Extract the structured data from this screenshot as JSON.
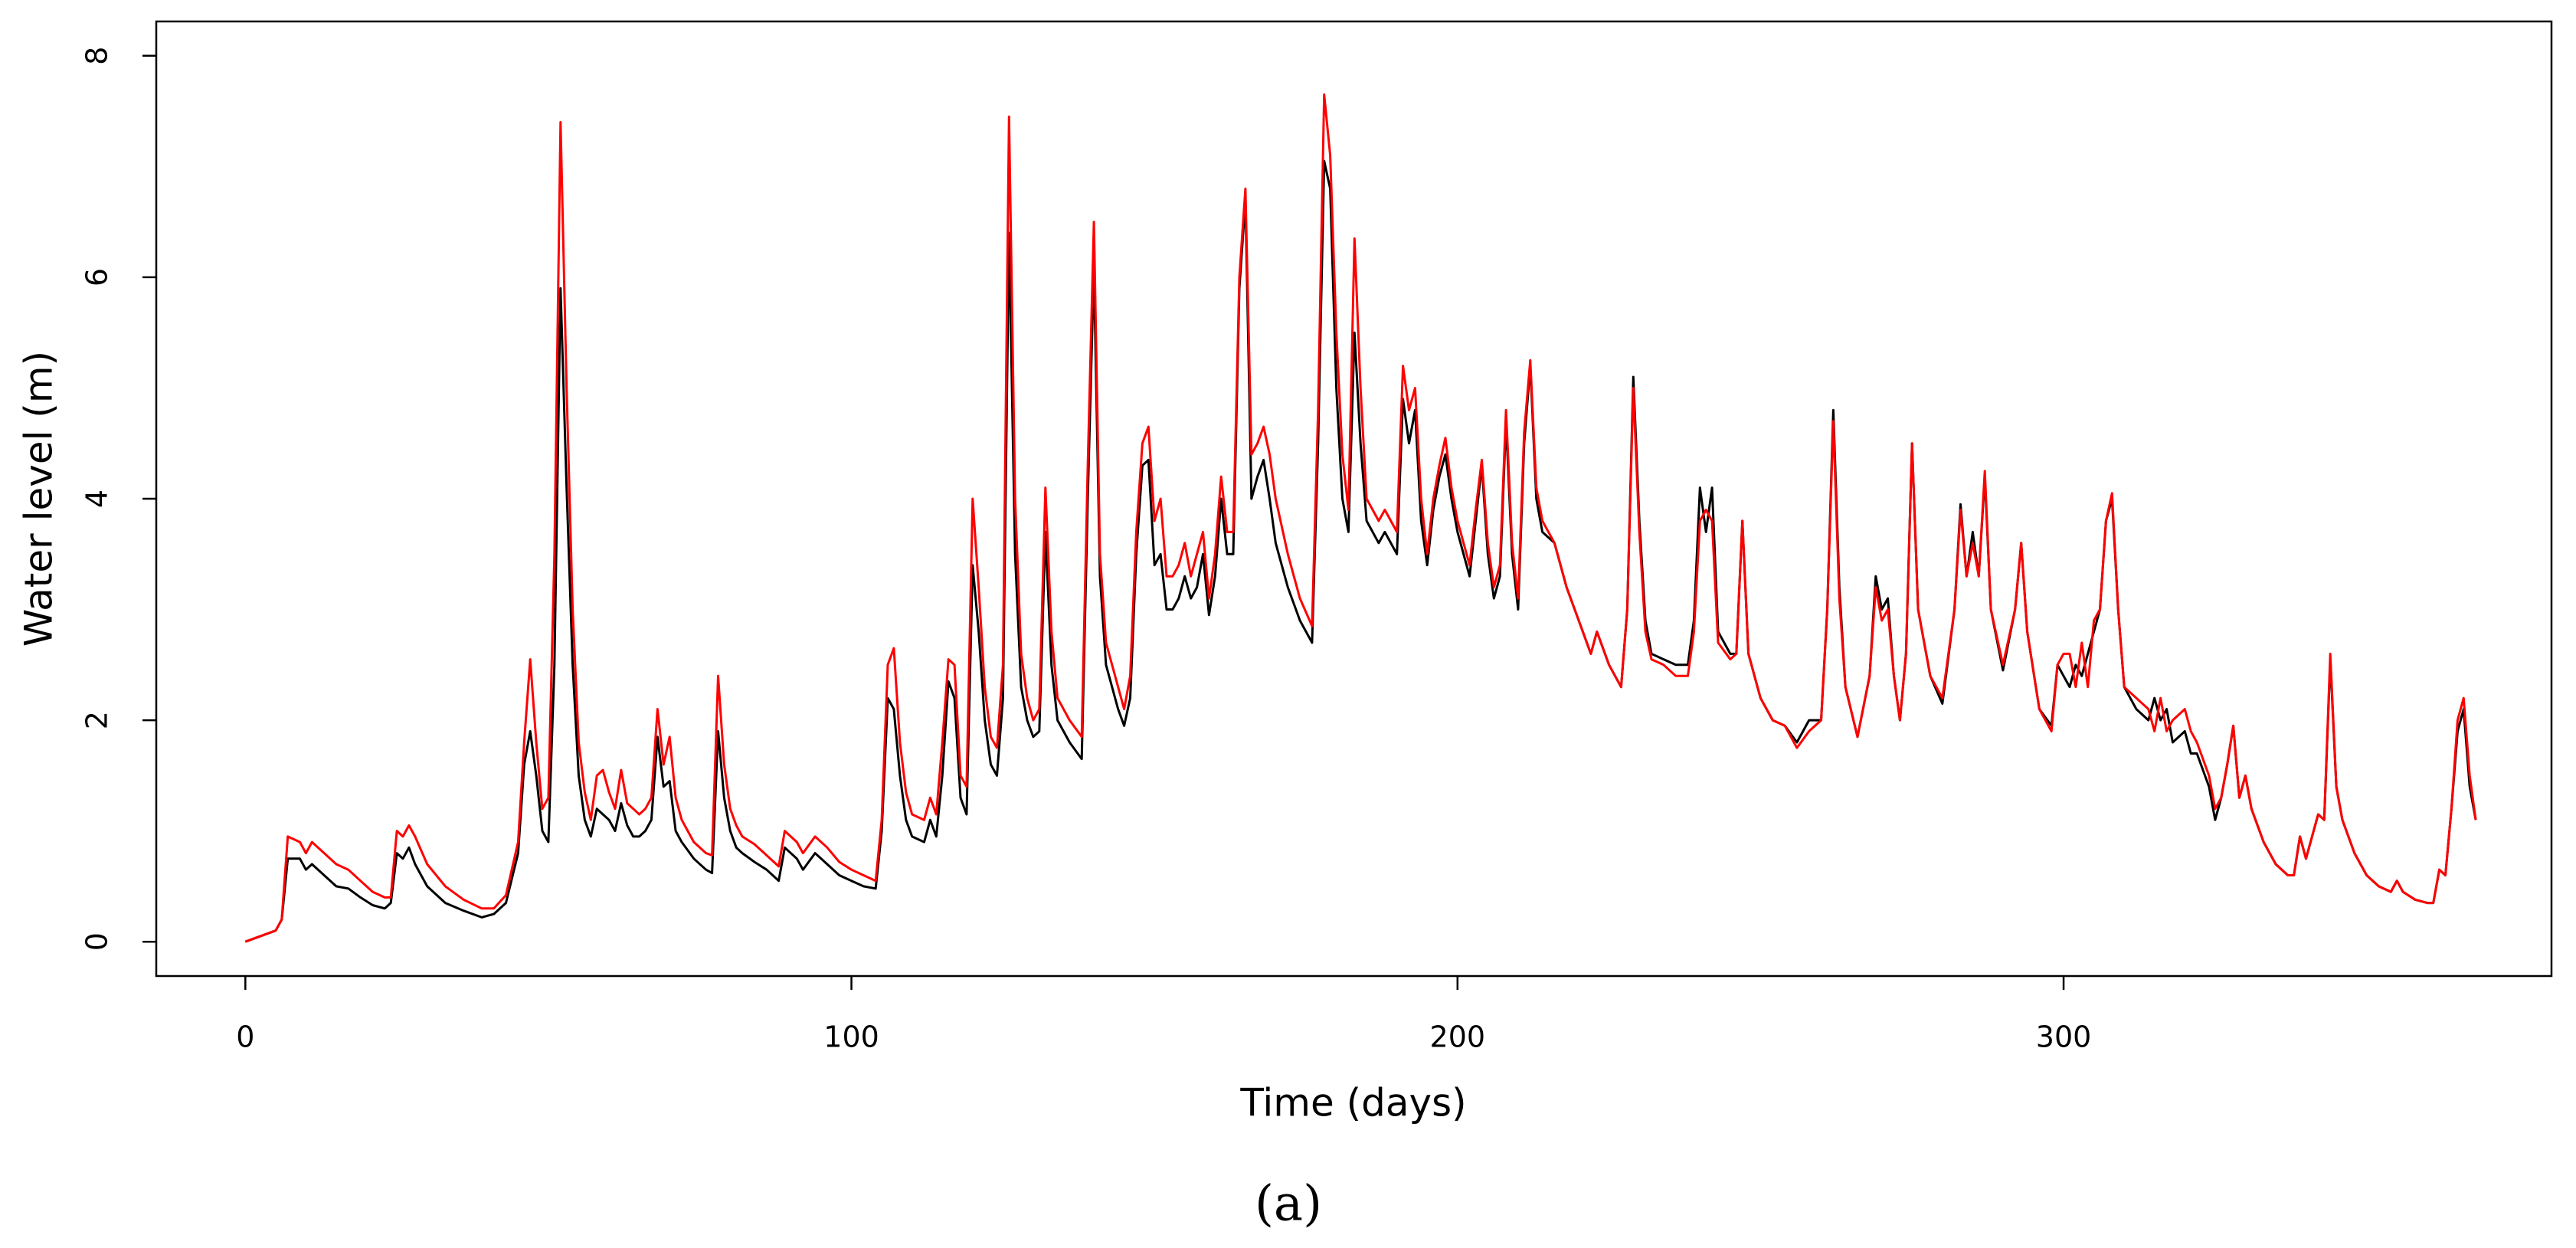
{
  "chart_data": {
    "type": "line",
    "xlabel": "Time (days)",
    "ylabel": "Water level (m)",
    "caption": "(a)",
    "xlim": [
      -14.7,
      380.5
    ],
    "ylim": [
      -0.31,
      8.31
    ],
    "xticks": [
      0,
      100,
      200,
      300
    ],
    "yticks": [
      0,
      2,
      4,
      6,
      8
    ],
    "x": [
      0,
      5,
      6,
      7,
      9,
      10,
      11,
      13,
      15,
      17,
      19,
      21,
      23,
      24,
      25,
      26,
      27,
      28,
      30,
      33,
      36,
      39,
      41,
      43,
      45,
      46,
      47,
      48,
      49,
      50,
      51,
      52,
      53,
      54,
      55,
      56,
      57,
      58,
      59,
      60,
      61,
      62,
      63,
      64,
      65,
      66,
      67,
      68,
      69,
      70,
      71,
      72,
      74,
      76,
      77,
      78,
      79,
      80,
      81,
      82,
      84,
      86,
      88,
      89,
      91,
      92,
      94,
      96,
      98,
      100,
      102,
      104,
      105,
      106,
      107,
      108,
      109,
      110,
      112,
      113,
      114,
      115,
      116,
      117,
      118,
      119,
      120,
      121,
      122,
      123,
      124,
      125,
      126,
      127,
      128,
      129,
      130,
      131,
      132,
      133,
      134,
      136,
      138,
      139,
      140,
      141,
      142,
      144,
      145,
      146,
      147,
      148,
      149,
      150,
      151,
      152,
      153,
      154,
      155,
      156,
      157,
      158,
      159,
      160,
      161,
      162,
      163,
      164,
      165,
      166,
      167,
      168,
      169,
      170,
      172,
      174,
      176,
      177,
      178,
      179,
      180,
      181,
      182,
      183,
      184,
      185,
      187,
      188,
      190,
      191,
      192,
      193,
      194,
      195,
      196,
      197,
      198,
      199,
      200,
      202,
      203,
      204,
      205,
      206,
      207,
      208,
      209,
      210,
      211,
      212,
      213,
      214,
      216,
      218,
      220,
      222,
      223,
      225,
      227,
      228,
      229,
      230,
      231,
      232,
      234,
      236,
      238,
      239,
      240,
      241,
      242,
      243,
      245,
      246,
      247,
      248,
      250,
      252,
      254,
      256,
      258,
      260,
      261,
      262,
      263,
      264,
      266,
      268,
      269,
      270,
      271,
      272,
      273,
      274,
      275,
      276,
      278,
      280,
      282,
      283,
      284,
      285,
      286,
      287,
      288,
      290,
      292,
      293,
      294,
      296,
      298,
      299,
      300,
      301,
      302,
      303,
      304,
      305,
      306,
      307,
      308,
      309,
      310,
      312,
      314,
      315,
      316,
      317,
      318,
      320,
      321,
      322,
      324,
      325,
      326,
      327,
      328,
      329,
      330,
      331,
      333,
      335,
      337,
      338,
      339,
      340,
      342,
      343,
      344,
      345,
      346,
      348,
      350,
      352,
      354,
      355,
      356,
      358,
      360,
      361,
      362,
      363,
      364,
      365,
      366,
      367,
      368
    ],
    "series": [
      {
        "color": "#000000",
        "values": [
          0,
          0.1,
          0.2,
          0.75,
          0.75,
          0.65,
          0.7,
          0.6,
          0.5,
          0.48,
          0.4,
          0.33,
          0.3,
          0.35,
          0.8,
          0.75,
          0.85,
          0.7,
          0.5,
          0.35,
          0.28,
          0.22,
          0.25,
          0.35,
          0.8,
          1.6,
          1.9,
          1.5,
          1.0,
          0.9,
          2.5,
          5.9,
          4.1,
          2.5,
          1.5,
          1.1,
          0.95,
          1.2,
          1.15,
          1.1,
          1.0,
          1.25,
          1.05,
          0.95,
          0.95,
          1.0,
          1.1,
          1.85,
          1.4,
          1.45,
          1.0,
          0.9,
          0.75,
          0.65,
          0.62,
          1.9,
          1.3,
          1.0,
          0.85,
          0.8,
          0.72,
          0.65,
          0.55,
          0.85,
          0.75,
          0.65,
          0.8,
          0.7,
          0.6,
          0.55,
          0.5,
          0.48,
          1.0,
          2.2,
          2.1,
          1.5,
          1.1,
          0.95,
          0.9,
          1.1,
          0.95,
          1.5,
          2.35,
          2.2,
          1.3,
          1.15,
          3.4,
          2.8,
          2.0,
          1.6,
          1.5,
          2.2,
          6.4,
          3.5,
          2.3,
          2.0,
          1.85,
          1.9,
          3.7,
          2.5,
          2.0,
          1.8,
          1.65,
          4.0,
          6.1,
          3.3,
          2.5,
          2.1,
          1.95,
          2.2,
          3.5,
          4.3,
          4.35,
          3.4,
          3.5,
          3.0,
          3.0,
          3.1,
          3.3,
          3.1,
          3.2,
          3.5,
          2.95,
          3.3,
          4.0,
          3.5,
          3.5,
          5.9,
          6.7,
          4.0,
          4.2,
          4.35,
          4.0,
          3.6,
          3.2,
          2.9,
          2.7,
          4.5,
          7.05,
          6.8,
          5.0,
          4.0,
          3.7,
          5.5,
          4.5,
          3.8,
          3.6,
          3.7,
          3.5,
          4.9,
          4.5,
          4.8,
          3.8,
          3.4,
          3.9,
          4.2,
          4.4,
          4.0,
          3.7,
          3.3,
          3.8,
          4.3,
          3.5,
          3.1,
          3.3,
          4.7,
          3.5,
          3.0,
          4.5,
          5.2,
          4.0,
          3.7,
          3.6,
          3.2,
          2.9,
          2.6,
          2.8,
          2.5,
          2.3,
          3.0,
          5.1,
          3.8,
          2.9,
          2.6,
          2.55,
          2.5,
          2.5,
          2.9,
          4.1,
          3.7,
          4.1,
          2.8,
          2.6,
          2.6,
          3.8,
          2.6,
          2.2,
          2.0,
          1.95,
          1.8,
          2.0,
          2.0,
          3.0,
          4.8,
          3.2,
          2.3,
          1.85,
          2.4,
          3.3,
          3.0,
          3.1,
          2.4,
          2.0,
          2.6,
          4.5,
          3.0,
          2.4,
          2.15,
          3.0,
          3.95,
          3.3,
          3.7,
          3.3,
          4.2,
          3.0,
          2.45,
          3.0,
          3.6,
          2.8,
          2.1,
          1.95,
          2.5,
          2.4,
          2.3,
          2.5,
          2.4,
          2.6,
          2.8,
          3.0,
          3.8,
          4.0,
          3.0,
          2.3,
          2.1,
          2.0,
          2.2,
          2.0,
          2.1,
          1.8,
          1.9,
          1.7,
          1.7,
          1.4,
          1.1,
          1.3,
          1.6,
          1.95,
          1.3,
          1.5,
          1.2,
          0.9,
          0.7,
          0.6,
          0.6,
          0.95,
          0.75,
          1.15,
          1.1,
          2.55,
          1.4,
          1.1,
          0.8,
          0.6,
          0.5,
          0.45,
          0.55,
          0.45,
          0.38,
          0.35,
          0.35,
          0.65,
          0.6,
          1.2,
          1.9,
          2.1,
          1.4,
          1.1
        ]
      },
      {
        "color": "#ff0000",
        "values": [
          0,
          0.1,
          0.2,
          0.95,
          0.9,
          0.8,
          0.9,
          0.8,
          0.7,
          0.65,
          0.55,
          0.45,
          0.4,
          0.4,
          1.0,
          0.95,
          1.05,
          0.95,
          0.7,
          0.5,
          0.38,
          0.3,
          0.3,
          0.42,
          0.9,
          1.8,
          2.55,
          1.8,
          1.2,
          1.3,
          3.5,
          7.4,
          5.0,
          3.0,
          1.8,
          1.35,
          1.1,
          1.5,
          1.55,
          1.35,
          1.2,
          1.55,
          1.25,
          1.2,
          1.15,
          1.2,
          1.3,
          2.1,
          1.6,
          1.85,
          1.3,
          1.1,
          0.9,
          0.8,
          0.78,
          2.4,
          1.6,
          1.2,
          1.05,
          0.95,
          0.88,
          0.78,
          0.68,
          1.0,
          0.9,
          0.8,
          0.95,
          0.85,
          0.72,
          0.65,
          0.6,
          0.55,
          1.1,
          2.5,
          2.65,
          1.8,
          1.35,
          1.15,
          1.1,
          1.3,
          1.15,
          1.8,
          2.55,
          2.5,
          1.5,
          1.4,
          4.0,
          3.2,
          2.3,
          1.85,
          1.75,
          2.5,
          7.45,
          4.0,
          2.6,
          2.2,
          2.0,
          2.1,
          4.1,
          2.8,
          2.2,
          2.0,
          1.85,
          4.3,
          6.5,
          3.5,
          2.7,
          2.3,
          2.1,
          2.4,
          3.7,
          4.5,
          4.65,
          3.8,
          4.0,
          3.3,
          3.3,
          3.4,
          3.6,
          3.3,
          3.5,
          3.7,
          3.1,
          3.5,
          4.2,
          3.7,
          3.7,
          6.0,
          6.8,
          4.4,
          4.5,
          4.65,
          4.4,
          4.0,
          3.5,
          3.1,
          2.85,
          4.8,
          7.65,
          7.1,
          5.5,
          4.4,
          3.9,
          6.35,
          5.0,
          4.0,
          3.8,
          3.9,
          3.7,
          5.2,
          4.8,
          5.0,
          4.0,
          3.5,
          4.0,
          4.3,
          4.55,
          4.1,
          3.8,
          3.4,
          3.9,
          4.35,
          3.6,
          3.2,
          3.4,
          4.8,
          3.6,
          3.1,
          4.6,
          5.25,
          4.1,
          3.8,
          3.6,
          3.2,
          2.9,
          2.6,
          2.8,
          2.5,
          2.3,
          3.0,
          5.0,
          3.7,
          2.8,
          2.55,
          2.5,
          2.4,
          2.4,
          2.8,
          3.8,
          3.9,
          3.8,
          2.7,
          2.55,
          2.6,
          3.8,
          2.6,
          2.2,
          2.0,
          1.95,
          1.75,
          1.9,
          2.0,
          3.0,
          4.7,
          3.1,
          2.3,
          1.85,
          2.4,
          3.2,
          2.9,
          3.0,
          2.4,
          2.0,
          2.6,
          4.5,
          3.0,
          2.4,
          2.2,
          3.0,
          3.9,
          3.3,
          3.6,
          3.3,
          4.25,
          3.0,
          2.5,
          3.0,
          3.6,
          2.8,
          2.1,
          1.9,
          2.5,
          2.6,
          2.6,
          2.3,
          2.7,
          2.3,
          2.9,
          3.0,
          3.8,
          4.05,
          3.0,
          2.3,
          2.2,
          2.1,
          1.9,
          2.2,
          1.9,
          2.0,
          2.1,
          1.9,
          1.8,
          1.5,
          1.2,
          1.3,
          1.6,
          1.95,
          1.3,
          1.5,
          1.2,
          0.9,
          0.7,
          0.6,
          0.6,
          0.95,
          0.75,
          1.15,
          1.1,
          2.6,
          1.4,
          1.1,
          0.8,
          0.6,
          0.5,
          0.45,
          0.55,
          0.45,
          0.38,
          0.35,
          0.35,
          0.65,
          0.6,
          1.2,
          2.0,
          2.2,
          1.5,
          1.1
        ]
      }
    ]
  }
}
